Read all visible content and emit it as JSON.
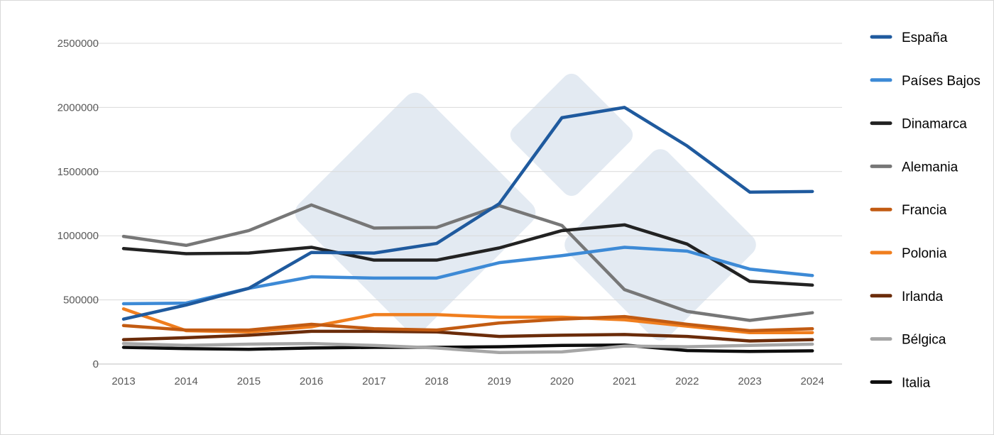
{
  "chart_data": {
    "type": "line",
    "title": "",
    "xlabel": "",
    "ylabel": "",
    "ylim": [
      0,
      2500000
    ],
    "yticks": [
      0,
      500000,
      1000000,
      1500000,
      2000000,
      2500000
    ],
    "categories": [
      "2013",
      "2014",
      "2015",
      "2016",
      "2017",
      "2018",
      "2019",
      "2020",
      "2021",
      "2022",
      "2023",
      "2024"
    ],
    "grid": "horizontal",
    "legend_position": "right",
    "series": [
      {
        "name": "España",
        "color": "#1f5a9e",
        "values": [
          350000,
          460000,
          590000,
          870000,
          865000,
          940000,
          1250000,
          1920000,
          2000000,
          1700000,
          1340000,
          1345000
        ]
      },
      {
        "name": "Países Bajos",
        "color": "#3d8ad6",
        "values": [
          470000,
          475000,
          590000,
          680000,
          670000,
          670000,
          790000,
          845000,
          910000,
          880000,
          740000,
          690000
        ]
      },
      {
        "name": "Dinamarca",
        "color": "#222222",
        "values": [
          900000,
          860000,
          865000,
          910000,
          810000,
          810000,
          905000,
          1040000,
          1085000,
          935000,
          645000,
          615000
        ]
      },
      {
        "name": "Alemania",
        "color": "#777777",
        "values": [
          995000,
          925000,
          1040000,
          1240000,
          1060000,
          1065000,
          1235000,
          1080000,
          580000,
          410000,
          340000,
          400000
        ]
      },
      {
        "name": "Francia",
        "color": "#c25b12",
        "values": [
          300000,
          265000,
          265000,
          310000,
          275000,
          265000,
          320000,
          350000,
          370000,
          310000,
          260000,
          275000
        ]
      },
      {
        "name": "Polonia",
        "color": "#f07e1e",
        "values": [
          430000,
          260000,
          250000,
          290000,
          385000,
          385000,
          365000,
          365000,
          345000,
          295000,
          245000,
          245000
        ]
      },
      {
        "name": "Irlanda",
        "color": "#6b2c0a",
        "values": [
          190000,
          205000,
          225000,
          255000,
          255000,
          250000,
          215000,
          225000,
          230000,
          215000,
          180000,
          190000
        ]
      },
      {
        "name": "Bélgica",
        "color": "#a6a6a6",
        "values": [
          160000,
          145000,
          155000,
          160000,
          145000,
          125000,
          90000,
          95000,
          140000,
          135000,
          145000,
          155000
        ]
      },
      {
        "name": "Italia",
        "color": "#0d0d0d",
        "values": [
          130000,
          120000,
          115000,
          125000,
          130000,
          130000,
          135000,
          145000,
          148000,
          105000,
          98000,
          103000
        ]
      }
    ]
  }
}
